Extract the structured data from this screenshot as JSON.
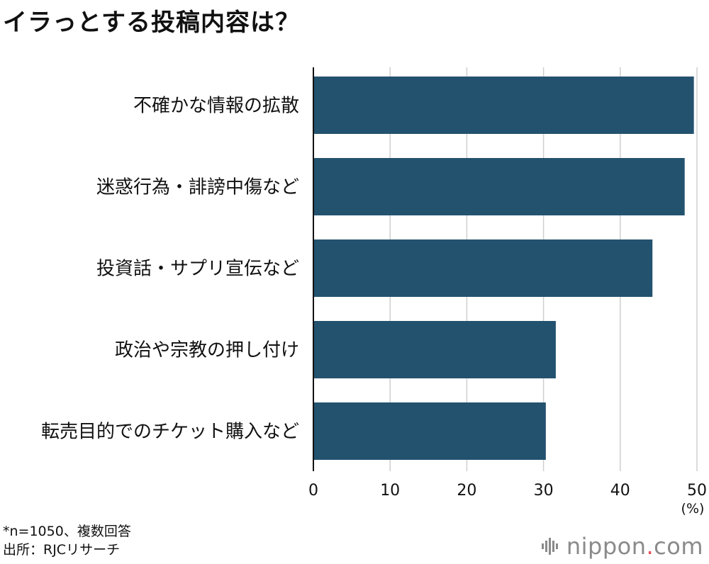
{
  "title": "イラっとする投稿内容は？",
  "chart_data": {
    "type": "bar",
    "orientation": "horizontal",
    "categories": [
      "不確かな情報の拡散",
      "迷惑行為・誹謗中傷など",
      "投資話・サプリ宣伝など",
      "政治や宗教の押し付け",
      "転売目的でのチケット購入など"
    ],
    "values": [
      49.6,
      48.4,
      44.2,
      31.6,
      30.3
    ],
    "xlim": [
      0,
      50
    ],
    "xticks": [
      "0",
      "10",
      "20",
      "30",
      "40",
      "50"
    ],
    "unit": "(%)",
    "grid": true,
    "bar_color": "#23526f"
  },
  "notes": [
    "*n=1050、複数回答",
    "出所：RJCリサーチ"
  ],
  "brand": {
    "name": "nippon",
    "dot": ".",
    "suffix": "com",
    "icon": "waveform-logo-icon"
  }
}
